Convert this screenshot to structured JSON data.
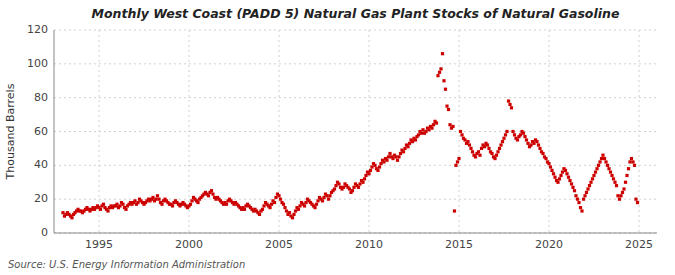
{
  "chart_data": {
    "type": "scatter",
    "title": "Monthly West Coast (PADD 5) Natural Gas Plant Stocks of Natural Gasoline",
    "y_label": "Thousand Barrels",
    "source": "Source: U.S. Energy Information Administration",
    "color": "#CC0000",
    "marker": "square",
    "grid": true,
    "xlim": [
      1992.5,
      2026.0
    ],
    "ylim": [
      0,
      120
    ],
    "xticks": [
      1995,
      2000,
      2005,
      2010,
      2015,
      2020,
      2025
    ],
    "yticks": [
      0,
      20,
      40,
      60,
      80,
      100,
      120
    ],
    "x": [
      1993.0,
      1993.083,
      1993.167,
      1993.25,
      1993.333,
      1993.417,
      1993.5,
      1993.583,
      1993.667,
      1993.75,
      1993.833,
      1993.917,
      1994.0,
      1994.083,
      1994.167,
      1994.25,
      1994.333,
      1994.417,
      1994.5,
      1994.583,
      1994.667,
      1994.75,
      1994.833,
      1994.917,
      1995.0,
      1995.083,
      1995.167,
      1995.25,
      1995.333,
      1995.417,
      1995.5,
      1995.583,
      1995.667,
      1995.75,
      1995.833,
      1995.917,
      1996.0,
      1996.083,
      1996.167,
      1996.25,
      1996.333,
      1996.417,
      1996.5,
      1996.583,
      1996.667,
      1996.75,
      1996.833,
      1996.917,
      1997.0,
      1997.083,
      1997.167,
      1997.25,
      1997.333,
      1997.417,
      1997.5,
      1997.583,
      1997.667,
      1997.75,
      1997.833,
      1997.917,
      1998.0,
      1998.083,
      1998.167,
      1998.25,
      1998.333,
      1998.417,
      1998.5,
      1998.583,
      1998.667,
      1998.75,
      1998.833,
      1998.917,
      1999.0,
      1999.083,
      1999.167,
      1999.25,
      1999.333,
      1999.417,
      1999.5,
      1999.583,
      1999.667,
      1999.75,
      1999.833,
      1999.917,
      2000.0,
      2000.083,
      2000.167,
      2000.25,
      2000.333,
      2000.417,
      2000.5,
      2000.583,
      2000.667,
      2000.75,
      2000.833,
      2000.917,
      2001.0,
      2001.083,
      2001.167,
      2001.25,
      2001.333,
      2001.417,
      2001.5,
      2001.583,
      2001.667,
      2001.75,
      2001.833,
      2001.917,
      2002.0,
      2002.083,
      2002.167,
      2002.25,
      2002.333,
      2002.417,
      2002.5,
      2002.583,
      2002.667,
      2002.75,
      2002.833,
      2002.917,
      2003.0,
      2003.083,
      2003.167,
      2003.25,
      2003.333,
      2003.417,
      2003.5,
      2003.583,
      2003.667,
      2003.75,
      2003.833,
      2003.917,
      2004.0,
      2004.083,
      2004.167,
      2004.25,
      2004.333,
      2004.417,
      2004.5,
      2004.583,
      2004.667,
      2004.75,
      2004.833,
      2004.917,
      2005.0,
      2005.083,
      2005.167,
      2005.25,
      2005.333,
      2005.417,
      2005.5,
      2005.583,
      2005.667,
      2005.75,
      2005.833,
      2005.917,
      2006.0,
      2006.083,
      2006.167,
      2006.25,
      2006.333,
      2006.417,
      2006.5,
      2006.583,
      2006.667,
      2006.75,
      2006.833,
      2006.917,
      2007.0,
      2007.083,
      2007.167,
      2007.25,
      2007.333,
      2007.417,
      2007.5,
      2007.583,
      2007.667,
      2007.75,
      2007.833,
      2007.917,
      2008.0,
      2008.083,
      2008.167,
      2008.25,
      2008.333,
      2008.417,
      2008.5,
      2008.583,
      2008.667,
      2008.75,
      2008.833,
      2008.917,
      2009.0,
      2009.083,
      2009.167,
      2009.25,
      2009.333,
      2009.417,
      2009.5,
      2009.583,
      2009.667,
      2009.75,
      2009.833,
      2009.917,
      2010.0,
      2010.083,
      2010.167,
      2010.25,
      2010.333,
      2010.417,
      2010.5,
      2010.583,
      2010.667,
      2010.75,
      2010.833,
      2010.917,
      2011.0,
      2011.083,
      2011.167,
      2011.25,
      2011.333,
      2011.417,
      2011.5,
      2011.583,
      2011.667,
      2011.75,
      2011.833,
      2011.917,
      2012.0,
      2012.083,
      2012.167,
      2012.25,
      2012.333,
      2012.417,
      2012.5,
      2012.583,
      2012.667,
      2012.75,
      2012.833,
      2012.917,
      2013.0,
      2013.083,
      2013.167,
      2013.25,
      2013.333,
      2013.417,
      2013.5,
      2013.583,
      2013.667,
      2013.75,
      2013.833,
      2013.917,
      2014.0,
      2014.083,
      2014.167,
      2014.25,
      2014.333,
      2014.417,
      2014.5,
      2014.583,
      2014.667,
      2014.75,
      2014.833,
      2014.917,
      2015.0,
      2015.083,
      2015.167,
      2015.25,
      2015.333,
      2015.417,
      2015.5,
      2015.583,
      2015.667,
      2015.75,
      2015.833,
      2015.917,
      2016.0,
      2016.083,
      2016.167,
      2016.25,
      2016.333,
      2016.417,
      2016.5,
      2016.583,
      2016.667,
      2016.75,
      2016.833,
      2016.917,
      2017.0,
      2017.083,
      2017.167,
      2017.25,
      2017.333,
      2017.417,
      2017.5,
      2017.583,
      2017.667,
      2017.75,
      2017.833,
      2017.917,
      2018.0,
      2018.083,
      2018.167,
      2018.25,
      2018.333,
      2018.417,
      2018.5,
      2018.583,
      2018.667,
      2018.75,
      2018.833,
      2018.917,
      2019.0,
      2019.083,
      2019.167,
      2019.25,
      2019.333,
      2019.417,
      2019.5,
      2019.583,
      2019.667,
      2019.75,
      2019.833,
      2019.917,
      2020.0,
      2020.083,
      2020.167,
      2020.25,
      2020.333,
      2020.417,
      2020.5,
      2020.583,
      2020.667,
      2020.75,
      2020.833,
      2020.917,
      2021.0,
      2021.083,
      2021.167,
      2021.25,
      2021.333,
      2021.417,
      2021.5,
      2021.583,
      2021.667,
      2021.75,
      2021.833,
      2021.917,
      2022.0,
      2022.083,
      2022.167,
      2022.25,
      2022.333,
      2022.417,
      2022.5,
      2022.583,
      2022.667,
      2022.75,
      2022.833,
      2022.917,
      2023.0,
      2023.083,
      2023.167,
      2023.25,
      2023.333,
      2023.417,
      2023.5,
      2023.583,
      2023.667,
      2023.75,
      2023.833,
      2023.917,
      2024.0,
      2024.083,
      2024.167,
      2024.25,
      2024.333,
      2024.417,
      2024.5,
      2024.583,
      2024.667,
      2024.75,
      2024.833,
      2024.917
    ],
    "values": [
      12,
      10,
      11,
      12,
      11,
      10,
      9,
      11,
      12,
      13,
      14,
      13,
      13,
      12,
      13,
      14,
      15,
      14,
      13,
      14,
      15,
      14,
      15,
      16,
      15,
      14,
      16,
      17,
      15,
      14,
      13,
      15,
      16,
      15,
      16,
      16,
      17,
      15,
      16,
      18,
      17,
      15,
      14,
      16,
      17,
      18,
      17,
      18,
      19,
      17,
      18,
      20,
      19,
      18,
      17,
      18,
      19,
      20,
      19,
      20,
      21,
      19,
      20,
      22,
      20,
      18,
      17,
      19,
      20,
      19,
      18,
      17,
      17,
      16,
      18,
      19,
      18,
      17,
      16,
      17,
      18,
      17,
      16,
      15,
      16,
      17,
      19,
      21,
      20,
      19,
      18,
      20,
      21,
      22,
      23,
      24,
      23,
      22,
      24,
      25,
      23,
      21,
      20,
      21,
      20,
      19,
      18,
      17,
      18,
      17,
      19,
      20,
      19,
      18,
      17,
      18,
      17,
      16,
      15,
      14,
      15,
      14,
      16,
      17,
      16,
      15,
      14,
      13,
      14,
      13,
      12,
      11,
      13,
      14,
      16,
      18,
      17,
      16,
      15,
      17,
      19,
      18,
      21,
      23,
      22,
      20,
      18,
      17,
      15,
      13,
      11,
      12,
      10,
      9,
      11,
      13,
      15,
      14,
      16,
      18,
      17,
      16,
      18,
      20,
      19,
      18,
      17,
      16,
      15,
      17,
      19,
      21,
      20,
      19,
      21,
      23,
      22,
      20,
      22,
      24,
      25,
      26,
      28,
      30,
      29,
      27,
      26,
      27,
      29,
      28,
      27,
      26,
      24,
      25,
      27,
      29,
      28,
      27,
      29,
      31,
      30,
      32,
      34,
      36,
      35,
      37,
      39,
      41,
      40,
      38,
      37,
      39,
      41,
      43,
      42,
      44,
      43,
      45,
      47,
      45,
      44,
      46,
      45,
      43,
      45,
      47,
      49,
      48,
      50,
      52,
      51,
      53,
      55,
      54,
      56,
      55,
      57,
      58,
      60,
      59,
      61,
      59,
      60,
      62,
      61,
      63,
      62,
      64,
      66,
      65,
      93,
      95,
      97,
      106,
      90,
      85,
      75,
      73,
      64,
      62,
      63,
      13,
      40,
      42,
      44,
      60,
      58,
      56,
      55,
      53,
      54,
      52,
      50,
      48,
      46,
      45,
      47,
      48,
      46,
      50,
      52,
      51,
      53,
      52,
      50,
      48,
      47,
      45,
      44,
      46,
      48,
      50,
      52,
      54,
      56,
      58,
      60,
      78,
      76,
      74,
      60,
      58,
      56,
      55,
      57,
      58,
      60,
      59,
      57,
      55,
      53,
      51,
      52,
      54,
      53,
      55,
      54,
      52,
      50,
      48,
      47,
      45,
      44,
      42,
      41,
      39,
      37,
      35,
      33,
      31,
      30,
      32,
      34,
      36,
      38,
      37,
      35,
      33,
      31,
      29,
      27,
      25,
      22,
      20,
      18,
      15,
      13,
      20,
      22,
      24,
      26,
      28,
      30,
      32,
      34,
      36,
      38,
      40,
      42,
      44,
      46,
      44,
      42,
      40,
      38,
      36,
      34,
      32,
      30,
      28,
      22,
      20,
      22,
      24,
      26,
      30,
      34,
      38,
      42,
      44,
      42,
      40,
      20,
      18
    ]
  }
}
